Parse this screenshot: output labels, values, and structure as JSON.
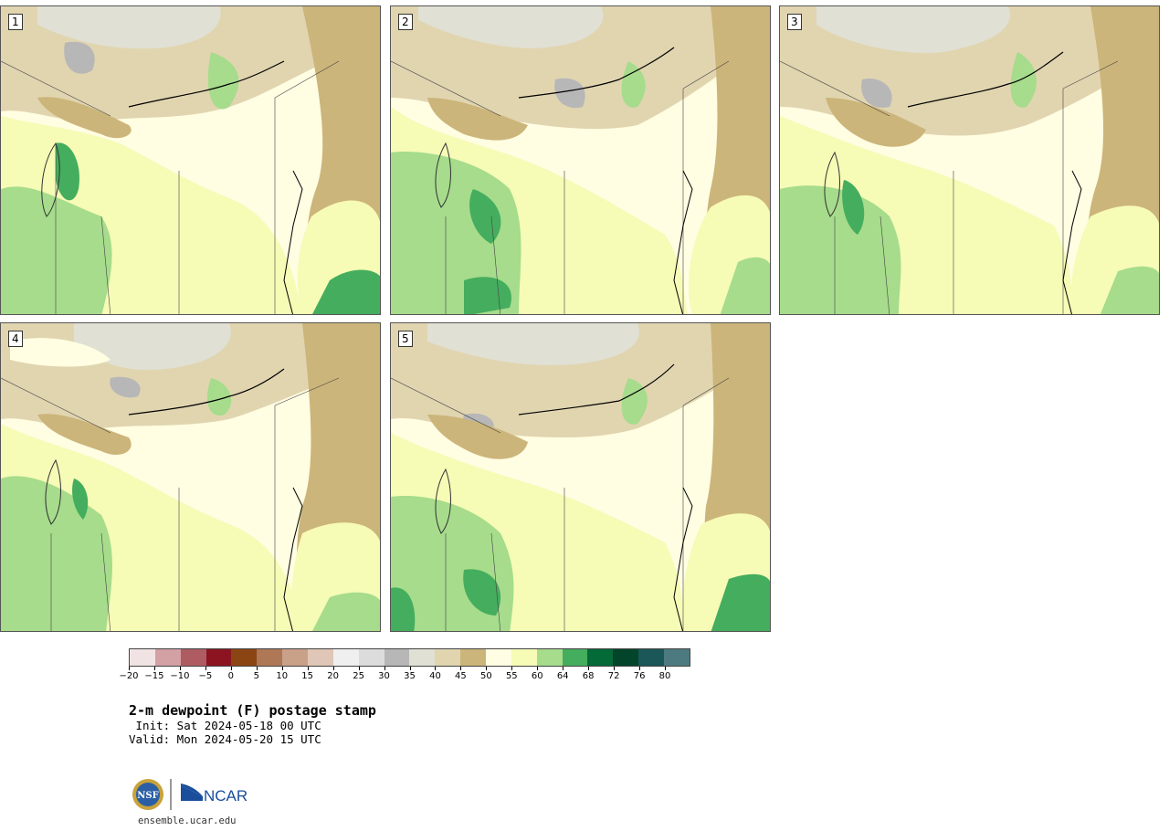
{
  "panels": [
    {
      "label": "1"
    },
    {
      "label": "2"
    },
    {
      "label": "3"
    },
    {
      "label": "4"
    },
    {
      "label": "5"
    }
  ],
  "colorbar": {
    "colors": [
      "#f1e3e3",
      "#d3a0a4",
      "#ae5c62",
      "#8b1420",
      "#8b4513",
      "#ae7756",
      "#c9a088",
      "#e0c6b6",
      "#efefef",
      "#dcdcdc",
      "#b7b7b7",
      "#e0e0d4",
      "#e1d5b0",
      "#ccb57a",
      "#fffde2",
      "#f6fbb6",
      "#a6dc8c",
      "#45ad5e",
      "#036a38",
      "#03452a",
      "#1b5659",
      "#4d7a80"
    ],
    "tick_labels": [
      "−20",
      "−15",
      "−10",
      "−5",
      "0",
      "5",
      "10",
      "15",
      "20",
      "25",
      "30",
      "35",
      "40",
      "45",
      "50",
      "55",
      "60",
      "64",
      "68",
      "72",
      "76",
      "80"
    ]
  },
  "title": "2-m dewpoint (F) postage stamp",
  "init_line": " Init: Sat 2024-05-18 00 UTC",
  "valid_line": "Valid: Mon 2024-05-20 15 UTC",
  "site": "ensemble.ucar.edu",
  "logos": {
    "nsf": "NSF",
    "ncar": "NCAR"
  }
}
